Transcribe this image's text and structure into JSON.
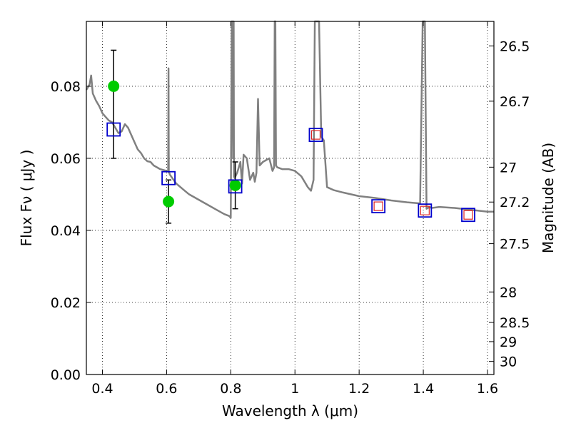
{
  "chart_data": {
    "type": "scatter",
    "title": "",
    "xlabel": "Wavelength  λ (μm)",
    "ylabel": "Flux  Fν  ( μJy )",
    "ylabel_right": "Magnitude (AB)",
    "xlim": [
      0.35,
      1.62
    ],
    "ylim": [
      0.0,
      0.098
    ],
    "grid": true,
    "x_ticks": [
      0.4,
      0.6,
      0.8,
      1.0,
      1.2,
      1.4,
      1.6
    ],
    "x_tick_labels": [
      "0.4",
      "0.6",
      "0.8",
      "1",
      "1.2",
      "1.4",
      "1.6"
    ],
    "y_ticks": [
      0.0,
      0.02,
      0.04,
      0.06,
      0.08
    ],
    "y_tick_labels": [
      "0.00",
      "0.02",
      "0.04",
      "0.06",
      "0.08"
    ],
    "mag_ticks": [
      26.5,
      26.7,
      27,
      27.2,
      27.5,
      28,
      28.5,
      29,
      30
    ],
    "mag_tick_labels": [
      "26.5",
      "26.7",
      "27",
      "27.2",
      "27.5",
      "28",
      "28.5",
      "29",
      "30"
    ],
    "colors": {
      "template": "#808080",
      "observed": "#00cc00",
      "model_blue": "#0000cc",
      "model_red": "#dd2222",
      "errorbar": "#000000"
    },
    "series": [
      {
        "kind": "template_spectrum",
        "x": [
          0.35,
          0.36,
          0.365,
          0.37,
          0.38,
          0.39,
          0.4,
          0.41,
          0.42,
          0.43,
          0.44,
          0.45,
          0.46,
          0.47,
          0.48,
          0.49,
          0.5,
          0.51,
          0.52,
          0.53,
          0.54,
          0.55,
          0.56,
          0.58,
          0.6,
          0.605,
          0.606,
          0.607,
          0.608,
          0.609,
          0.61,
          0.63,
          0.65,
          0.67,
          0.7,
          0.73,
          0.76,
          0.78,
          0.795,
          0.8,
          0.803,
          0.805,
          0.807,
          0.809,
          0.81,
          0.812,
          0.82,
          0.83,
          0.835,
          0.84,
          0.85,
          0.86,
          0.87,
          0.875,
          0.88,
          0.885,
          0.89,
          0.9,
          0.91,
          0.92,
          0.93,
          0.935,
          0.937,
          0.939,
          0.941,
          0.945,
          0.96,
          0.98,
          1.0,
          1.02,
          1.04,
          1.05,
          1.058,
          1.062,
          1.075,
          1.082,
          1.09,
          1.1,
          1.12,
          1.15,
          1.2,
          1.25,
          1.3,
          1.35,
          1.39,
          1.398,
          1.402,
          1.405,
          1.41,
          1.42,
          1.425,
          1.45,
          1.5,
          1.55,
          1.6,
          1.62
        ],
        "y": [
          0.079,
          0.0805,
          0.083,
          0.078,
          0.076,
          0.0745,
          0.0725,
          0.0715,
          0.0705,
          0.07,
          0.0685,
          0.067,
          0.0675,
          0.0695,
          0.0685,
          0.0665,
          0.0645,
          0.0625,
          0.0615,
          0.06,
          0.0592,
          0.059,
          0.058,
          0.057,
          0.0565,
          0.0565,
          0.085,
          0.056,
          0.056,
          0.0559,
          0.0555,
          0.053,
          0.0515,
          0.05,
          0.0485,
          0.047,
          0.0455,
          0.0445,
          0.044,
          0.0435,
          0.098,
          0.098,
          0.06,
          0.098,
          0.055,
          0.0545,
          0.056,
          0.059,
          0.053,
          0.061,
          0.06,
          0.054,
          0.056,
          0.0535,
          0.056,
          0.0765,
          0.058,
          0.059,
          0.0595,
          0.06,
          0.0565,
          0.0575,
          0.098,
          0.098,
          0.058,
          0.0575,
          0.057,
          0.057,
          0.0565,
          0.055,
          0.052,
          0.051,
          0.054,
          0.098,
          0.098,
          0.066,
          0.065,
          0.052,
          0.0512,
          0.0505,
          0.0495,
          0.049,
          0.0483,
          0.0478,
          0.0475,
          0.098,
          0.098,
          0.098,
          0.046,
          0.0465,
          0.0462,
          0.0465,
          0.0462,
          0.0457,
          0.0452,
          0.0452
        ]
      },
      {
        "kind": "observed",
        "name": "",
        "x": [
          0.435,
          0.606,
          0.814
        ],
        "y": [
          0.08,
          0.048,
          0.0525
        ]
      },
      {
        "kind": "errorbars",
        "x": [
          0.435,
          0.606,
          0.814
        ],
        "y_low": [
          0.06,
          0.042,
          0.046
        ],
        "y_high": [
          0.09,
          0.054,
          0.059
        ]
      },
      {
        "kind": "model_blue_squares",
        "x": [
          0.435,
          0.606,
          0.814,
          1.065,
          1.26,
          1.405,
          1.54
        ],
        "y": [
          0.068,
          0.0545,
          0.0522,
          0.0665,
          0.0467,
          0.0455,
          0.0443
        ]
      },
      {
        "kind": "model_red_squares",
        "x": [
          1.065,
          1.26,
          1.405,
          1.54
        ],
        "y": [
          0.0665,
          0.0467,
          0.0455,
          0.0443
        ]
      }
    ]
  }
}
